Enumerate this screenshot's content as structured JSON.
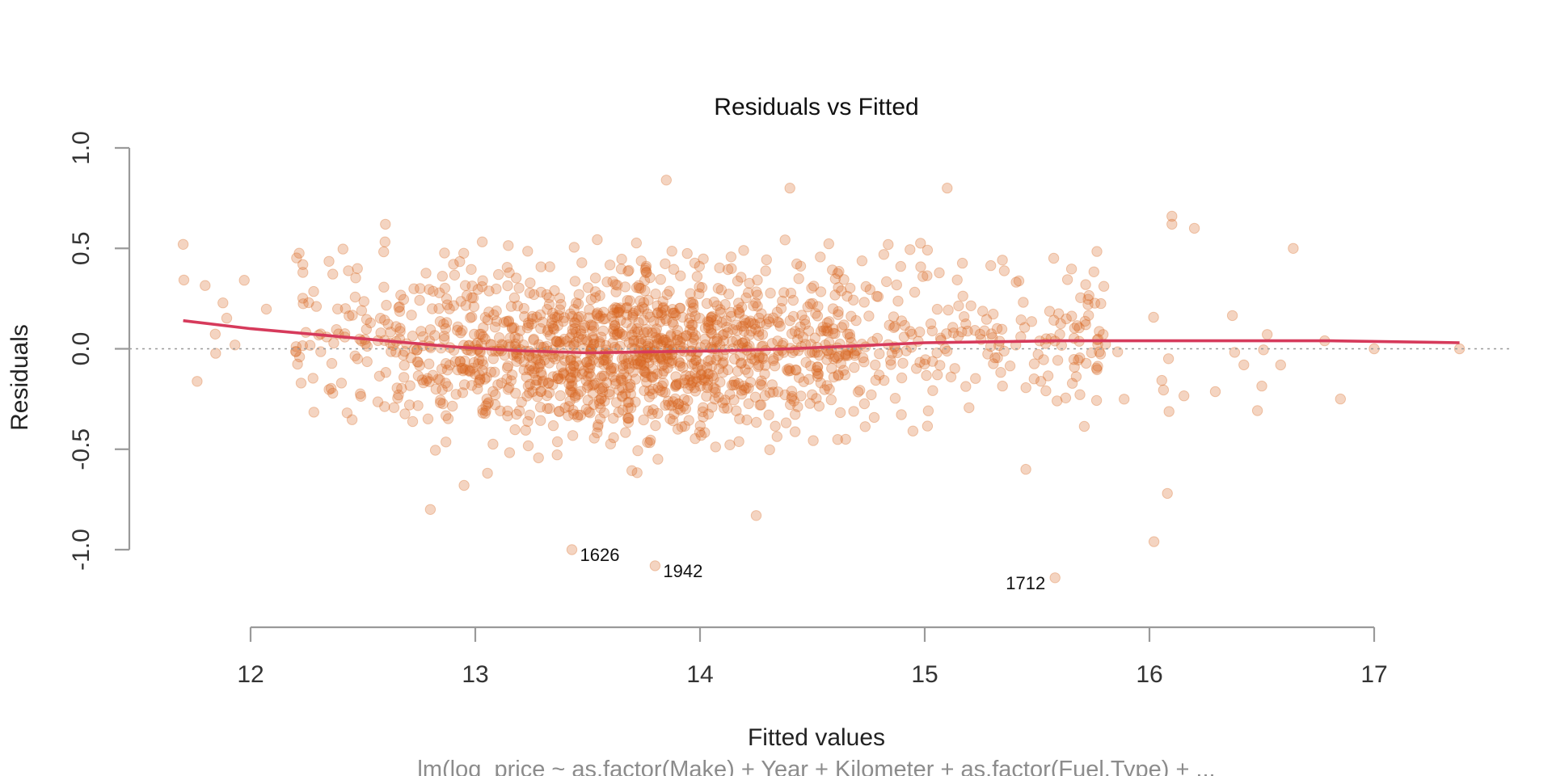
{
  "chart_data": {
    "type": "scatter",
    "title": "Residuals vs Fitted",
    "xlabel": "Fitted values",
    "ylabel": "Residuals",
    "subtitle": "lm(log_price ~ as.factor(Make) + Year + Kilometer + as.factor(Fuel.Type) +  ...",
    "xlim": [
      11.6,
      17.6
    ],
    "ylim": [
      -1.2,
      1.05
    ],
    "x_ticks": [
      "12",
      "13",
      "14",
      "15",
      "16",
      "17"
    ],
    "y_ticks": [
      "-1.0",
      "-0.5",
      "0.0",
      "0.5",
      "1.0"
    ],
    "grid": false,
    "reference_line": {
      "y": 0,
      "style": "dotted",
      "color": "#9a9a9a"
    },
    "point_color": "#d9661f",
    "point_alpha": 0.28,
    "smooth_color": "#d63a5b",
    "n_points_approx": 1600,
    "point_distribution_note_values": {
      "center_x": 13.7,
      "residual_sd": 0.2
    },
    "highlighted_points": [
      {
        "id": "1626",
        "x": 13.43,
        "y": -1.0,
        "label_side": "right"
      },
      {
        "id": "1942",
        "x": 13.8,
        "y": -1.08,
        "label_side": "right"
      },
      {
        "id": "1712",
        "x": 15.58,
        "y": -1.14,
        "label_side": "left"
      }
    ],
    "notable_points": [
      {
        "x": 11.7,
        "y": 0.52
      },
      {
        "x": 12.6,
        "y": 0.62
      },
      {
        "x": 13.85,
        "y": 0.84
      },
      {
        "x": 14.4,
        "y": 0.8
      },
      {
        "x": 15.1,
        "y": 0.8
      },
      {
        "x": 16.1,
        "y": 0.66
      },
      {
        "x": 16.1,
        "y": 0.62
      },
      {
        "x": 16.2,
        "y": 0.6
      },
      {
        "x": 16.64,
        "y": 0.5
      },
      {
        "x": 16.02,
        "y": -0.96
      },
      {
        "x": 16.08,
        "y": -0.72
      },
      {
        "x": 12.8,
        "y": -0.8
      },
      {
        "x": 14.25,
        "y": -0.83
      },
      {
        "x": 17.0,
        "y": 0.0
      },
      {
        "x": 17.38,
        "y": 0.0
      },
      {
        "x": 16.85,
        "y": -0.25
      },
      {
        "x": 16.78,
        "y": 0.04
      },
      {
        "x": 16.42,
        "y": -0.08
      },
      {
        "x": 15.45,
        "y": -0.6
      },
      {
        "x": 12.95,
        "y": -0.68
      }
    ],
    "smooth_curve": {
      "x": [
        11.7,
        12.0,
        12.3,
        12.6,
        12.9,
        13.2,
        13.5,
        13.8,
        14.1,
        14.4,
        14.7,
        15.0,
        15.3,
        15.6,
        15.9,
        16.2,
        16.5,
        16.8,
        17.1,
        17.38
      ],
      "y": [
        0.14,
        0.1,
        0.07,
        0.04,
        0.01,
        -0.01,
        -0.02,
        -0.015,
        -0.01,
        0.0,
        0.015,
        0.03,
        0.035,
        0.04,
        0.04,
        0.04,
        0.04,
        0.04,
        0.035,
        0.03
      ]
    }
  }
}
